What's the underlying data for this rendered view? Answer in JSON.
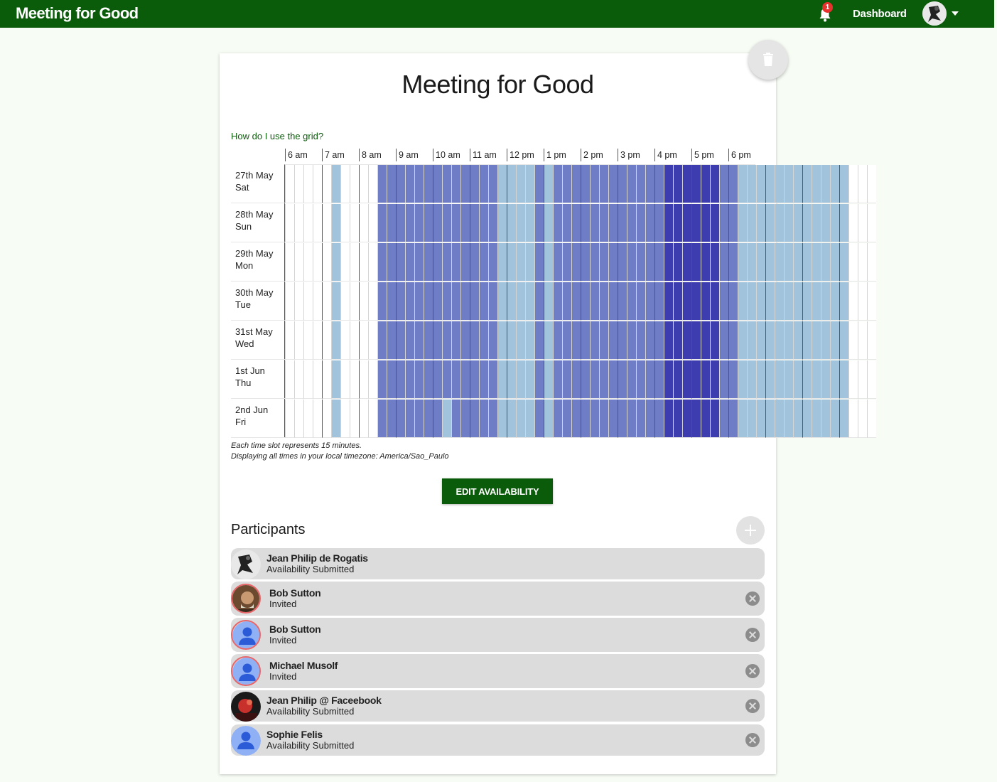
{
  "topbar": {
    "brand": "Meeting for Good",
    "notification_count": "1",
    "dashboard_label": "Dashboard",
    "color": "#0a5b0a"
  },
  "event": {
    "title": "Meeting for Good",
    "help_link": "How do I use the grid?"
  },
  "grid": {
    "hours": [
      "6 am",
      "7 am",
      "8 am",
      "9 am",
      "10 am",
      "11 am",
      "12 pm",
      "1 pm",
      "2 pm",
      "3 pm",
      "4 pm",
      "5 pm",
      "6 pm"
    ],
    "days": [
      {
        "date": "27th May",
        "weekday": "Sat"
      },
      {
        "date": "28th May",
        "weekday": "Sun"
      },
      {
        "date": "29th May",
        "weekday": "Mon"
      },
      {
        "date": "30th May",
        "weekday": "Tue"
      },
      {
        "date": "31st May",
        "weekday": "Wed"
      },
      {
        "date": "1st Jun",
        "weekday": "Thu"
      },
      {
        "date": "2nd Jun",
        "weekday": "Fri"
      }
    ],
    "slot_availability_default": "0000010000222222222222211112122222222222233333322111111111111000",
    "slot_availability_fri": "0000010000222222212222211112122222222222233333322111111111111000",
    "colors": {
      "0": "#ffffff",
      "1": "#a1c4dc",
      "2": "#6f7dc6",
      "3": "#3d3db0"
    },
    "note_slot": "Each time slot represents 15 minutes.",
    "note_timezone": "Displaying all times in your local timezone: America/Sao_Paulo"
  },
  "actions": {
    "edit_availability": "EDIT AVAILABILITY"
  },
  "participants": {
    "title": "Participants",
    "items": [
      {
        "name": "Jean Philip de Rogatis",
        "status": "Availability Submitted",
        "avatar": "photo-bw"
      },
      {
        "name": "Bob Sutton",
        "status": "Invited",
        "avatar": "photo-man"
      },
      {
        "name": "Bob Sutton",
        "status": "Invited",
        "avatar": "default-person"
      },
      {
        "name": "Michael Musolf",
        "status": "Invited",
        "avatar": "default-person"
      },
      {
        "name": "Jean Philip @ Faceebook",
        "status": "Availability Submitted",
        "avatar": "photo-red"
      },
      {
        "name": "Sophie Felis",
        "status": "Availability Submitted",
        "avatar": "default-person"
      }
    ]
  }
}
